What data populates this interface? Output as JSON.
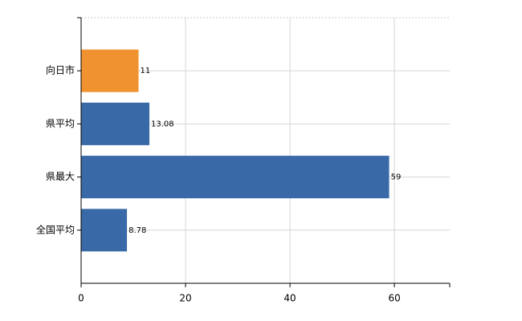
{
  "chart_data": {
    "type": "barh",
    "categories": [
      "向日市",
      "県平均",
      "県最大",
      "全国平均"
    ],
    "values": [
      11,
      13.08,
      59,
      8.78
    ],
    "colors": [
      "#f0922f",
      "#3a69a7",
      "#3a69a7",
      "#3a69a7"
    ],
    "xlim": [
      0,
      70.6
    ],
    "xticks": [
      0,
      20,
      40,
      60
    ],
    "grid": true
  }
}
